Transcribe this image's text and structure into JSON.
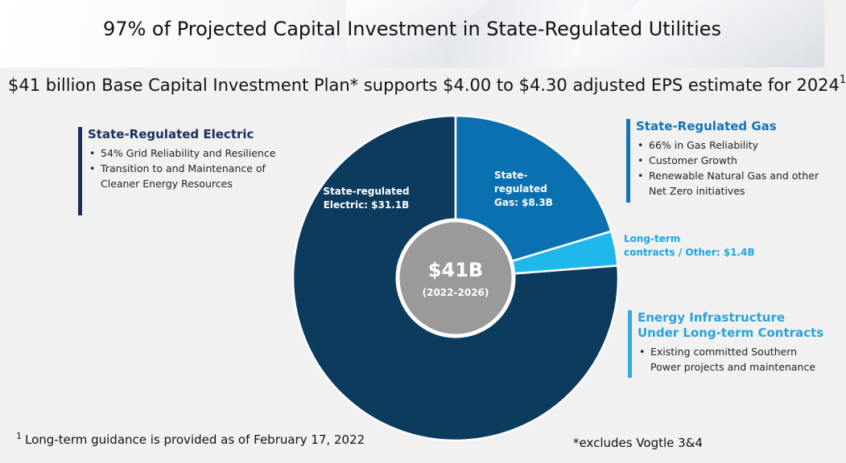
{
  "title": "97% of Projected Capital Investment in State-Regulated Utilities",
  "subtitle": {
    "text": "$41 billion Base Capital Investment Plan* supports $4.00 to $4.30 adjusted EPS estimate for 2024",
    "footnote_marker": "1"
  },
  "chart_data": {
    "type": "pie",
    "variant": "donut",
    "center_value": "$41B",
    "center_period": "(2022-2026)",
    "slices": [
      {
        "label_lines": [
          "State-regulated",
          "Electric: $31.1B"
        ],
        "value": 31.1,
        "color": "#0d3b5e"
      },
      {
        "label_lines": [
          "State-",
          "regulated",
          "Gas: $8.3B"
        ],
        "value": 8.3,
        "color": "#0b70b0"
      },
      {
        "label_lines": [
          "Long-term",
          "contracts / Other: $1.4B"
        ],
        "value": 1.4,
        "color": "#1fb8ec",
        "label_outside": true,
        "label_color": "#1aa6e0"
      }
    ],
    "center_fill": "#9a9a9a"
  },
  "blocks": {
    "electric": {
      "heading": "State-Regulated Electric",
      "bullets": [
        "54% Grid Reliability and Resilience",
        "Transition to and Maintenance of Cleaner Energy Resources"
      ]
    },
    "gas": {
      "heading": "State-Regulated Gas",
      "bullets": [
        "66% in Gas Reliability",
        "Customer Growth",
        "Renewable Natural Gas and other Net Zero initiatives"
      ]
    },
    "infrastructure": {
      "heading_line1": "Energy Infrastructure",
      "heading_line2": "Under Long-term Contracts",
      "bullets": [
        "Existing committed Southern Power projects and maintenance"
      ]
    }
  },
  "footnote": {
    "marker": "1",
    "text": "Long-term guidance is provided as of February 17, 2022"
  },
  "excludes_note": "*excludes Vogtle 3&4"
}
